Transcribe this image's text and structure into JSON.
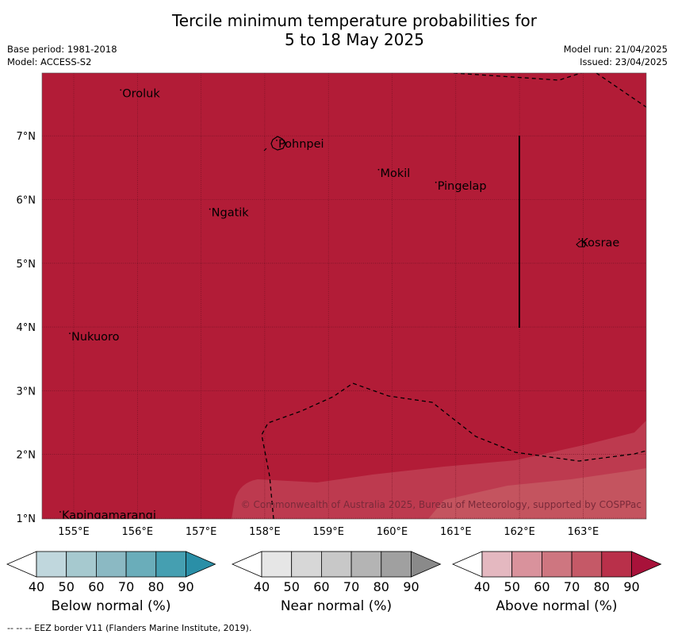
{
  "title_line1": "Tercile minimum temperature probabilities for",
  "title_line2": "5 to 18 May 2025",
  "meta": {
    "base_period": "Base period: 1981-2018",
    "model": "Model: ACCESS-S2",
    "model_run": "Model run: 21/04/2025",
    "issued": "Issued: 23/04/2025"
  },
  "map": {
    "lon_ticks": [
      "155°E",
      "156°E",
      "157°E",
      "158°E",
      "159°E",
      "160°E",
      "161°E",
      "162°E",
      "163°E"
    ],
    "lat_ticks": [
      "7°N",
      "6°N",
      "5°N",
      "4°N",
      "3°N",
      "2°N",
      "1°N"
    ],
    "copyright": "© Commonwealth of Australia 2025, Bureau of Meteorology, supported by COSPPac",
    "islands": [
      {
        "name": "Oroluk",
        "lon": 155.75,
        "lat": 7.67
      },
      {
        "name": "Pohnpei",
        "lon": 158.2,
        "lat": 6.88
      },
      {
        "name": "Mokil",
        "lon": 159.8,
        "lat": 6.42
      },
      {
        "name": "Pingelap",
        "lon": 160.7,
        "lat": 6.22
      },
      {
        "name": "Ngatik",
        "lon": 157.15,
        "lat": 5.8
      },
      {
        "name": "Kosrae",
        "lon": 162.95,
        "lat": 5.33
      },
      {
        "name": "Nukuoro",
        "lon": 154.95,
        "lat": 3.85
      },
      {
        "name": "Kapingamarangi",
        "lon": 154.8,
        "lat": 1.05
      }
    ],
    "colors": {
      "above_80": "#b21c37",
      "above_70": "#bd3a4f",
      "above_60": "#c4545f"
    }
  },
  "colorbars": [
    {
      "label": "Below normal (%)",
      "ticks": [
        "40",
        "50",
        "60",
        "70",
        "80",
        "90"
      ],
      "colors": [
        "#c0d7dd",
        "#a6c9cf",
        "#8bb9c3",
        "#6aadba",
        "#459fb1",
        "#2a8fa7"
      ]
    },
    {
      "label": "Near normal (%)",
      "ticks": [
        "40",
        "50",
        "60",
        "70",
        "80",
        "90"
      ],
      "colors": [
        "#e6e6e6",
        "#d7d7d7",
        "#c8c8c8",
        "#b4b4b4",
        "#a0a0a0",
        "#8a8a8a"
      ]
    },
    {
      "label": "Above normal (%)",
      "ticks": [
        "40",
        "50",
        "60",
        "70",
        "80",
        "90"
      ],
      "colors": [
        "#e4b8c0",
        "#d9929c",
        "#ce7680",
        "#c55967",
        "#b9304a",
        "#a8123a"
      ]
    }
  ],
  "footer": "--  --  -- EEZ border V11 (Flanders Marine Institute, 2019)."
}
